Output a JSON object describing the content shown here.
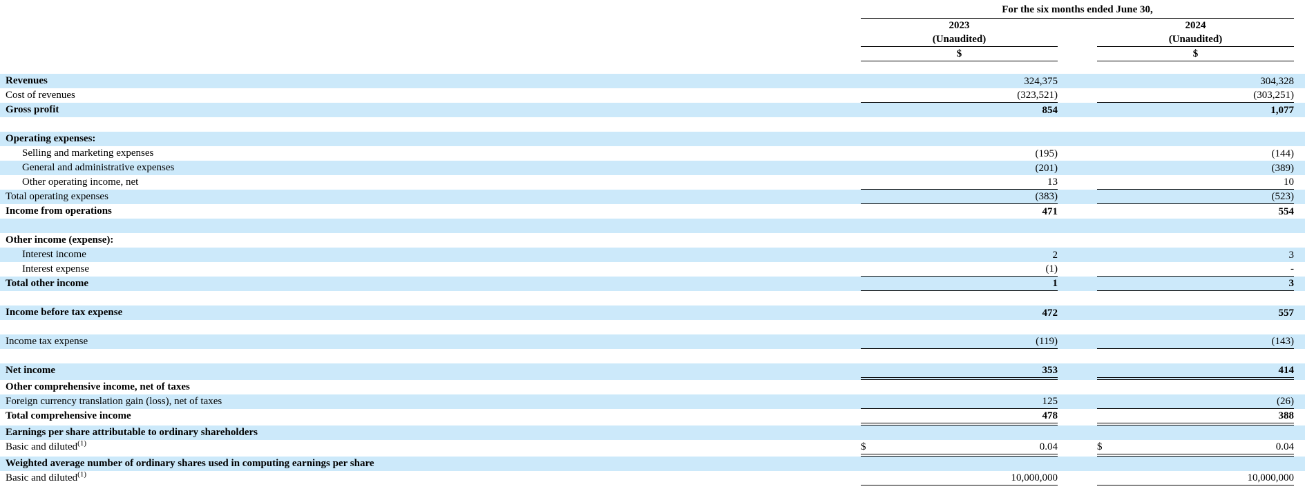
{
  "header": {
    "period_label": "For the six months ended June 30,",
    "columns": [
      {
        "year": "2023",
        "note": "(Unaudited)",
        "currency_symbol": "$"
      },
      {
        "year": "2024",
        "note": "(Unaudited)",
        "currency_symbol": "$"
      }
    ]
  },
  "colors": {
    "row_shade": "#cce9fa",
    "rule": "#000000",
    "text": "#000000",
    "background": "#ffffff"
  },
  "chart_data": {
    "type": "table",
    "title": "For the six months ended June 30,",
    "columns": [
      "2023 (Unaudited) $",
      "2024 (Unaudited) $"
    ]
  },
  "rows": [
    {
      "label": "Revenues",
      "bold": true,
      "shade": true,
      "values": [
        "324,375",
        "304,328"
      ]
    },
    {
      "label": "Cost of revenues",
      "shade": false,
      "values": [
        "(323,521)",
        "(303,251)"
      ],
      "rule": "single"
    },
    {
      "label": "Gross profit",
      "bold": true,
      "shade": true,
      "values": [
        "854",
        "1,077"
      ],
      "value_bold": true
    },
    {
      "label": "",
      "shade": false
    },
    {
      "label": "Operating expenses:",
      "bold": true,
      "shade": true
    },
    {
      "label": "Selling and marketing expenses",
      "indent": true,
      "shade": false,
      "values": [
        "(195)",
        "(144)"
      ]
    },
    {
      "label": "General and administrative expenses",
      "indent": true,
      "shade": true,
      "values": [
        "(201)",
        "(389)"
      ]
    },
    {
      "label": "Other operating income, net",
      "indent": true,
      "shade": false,
      "values": [
        "13",
        "10"
      ],
      "rule": "single"
    },
    {
      "label": "Total operating expenses",
      "shade": true,
      "values": [
        "(383)",
        "(523)"
      ],
      "rule": "single"
    },
    {
      "label": "Income from operations",
      "bold": true,
      "shade": false,
      "values": [
        "471",
        "554"
      ],
      "value_bold": true
    },
    {
      "label": "",
      "shade": true
    },
    {
      "label": "Other income (expense):",
      "bold": true,
      "shade": false
    },
    {
      "label": "Interest income",
      "indent": true,
      "shade": true,
      "values": [
        "2",
        "3"
      ]
    },
    {
      "label": "Interest expense",
      "indent": true,
      "shade": false,
      "values": [
        "(1)",
        "-"
      ],
      "rule": "single"
    },
    {
      "label": "Total other income",
      "bold": true,
      "shade": true,
      "values": [
        "1",
        "3"
      ],
      "value_bold": true,
      "rule": "single"
    },
    {
      "label": "",
      "shade": false
    },
    {
      "label": "Income before tax expense",
      "bold": true,
      "shade": true,
      "values": [
        "472",
        "557"
      ],
      "value_bold": true
    },
    {
      "label": "",
      "shade": false
    },
    {
      "label": "Income tax expense",
      "shade": true,
      "values": [
        "(119)",
        "(143)"
      ],
      "rule": "single"
    },
    {
      "label": "",
      "shade": false
    },
    {
      "label": "Net income",
      "bold": true,
      "shade": true,
      "values": [
        "353",
        "414"
      ],
      "value_bold": true,
      "rule": "double"
    },
    {
      "label": "Other comprehensive income, net of taxes",
      "bold": true,
      "shade": false
    },
    {
      "label": "Foreign currency translation gain (loss), net of taxes",
      "shade": true,
      "values": [
        "125",
        "(26)"
      ],
      "rule": "single"
    },
    {
      "label": "Total comprehensive income",
      "bold": true,
      "shade": false,
      "values": [
        "478",
        "388"
      ],
      "value_bold": true,
      "rule": "double"
    },
    {
      "label": "Earnings per share attributable to ordinary shareholders",
      "bold": true,
      "shade": true
    },
    {
      "label": "Basic and diluted",
      "sup": "(1)",
      "shade": false,
      "values": [
        "0.04",
        "0.04"
      ],
      "dollar": "$",
      "rule": "double"
    },
    {
      "label": "Weighted average number of ordinary shares used in computing earnings per share",
      "bold": true,
      "shade": true
    },
    {
      "label": "Basic and diluted",
      "sup": "(1)",
      "shade": false,
      "values": [
        "10,000,000",
        "10,000,000"
      ],
      "rule": "single"
    }
  ]
}
